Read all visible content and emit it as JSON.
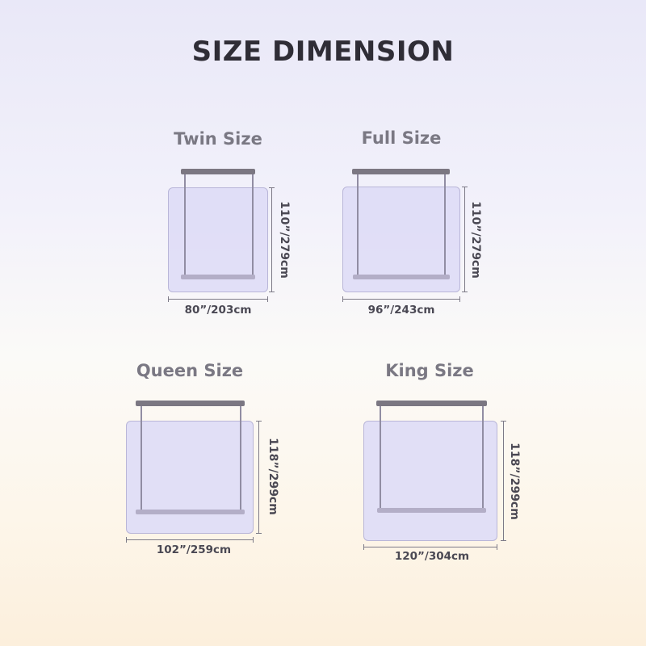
{
  "title": "SIZE DIMENSION",
  "sizes": [
    {
      "name": "Twin Size",
      "width_label": "80”/203cm",
      "height_label": "110”/279cm"
    },
    {
      "name": "Full Size",
      "width_label": "96”/243cm",
      "height_label": "110”/279cm"
    },
    {
      "name": "Queen Size",
      "width_label": "102”/259cm",
      "height_label": "118”/299cm"
    },
    {
      "name": "King Size",
      "width_label": "120”/304cm",
      "height_label": "118”/299cm"
    }
  ]
}
